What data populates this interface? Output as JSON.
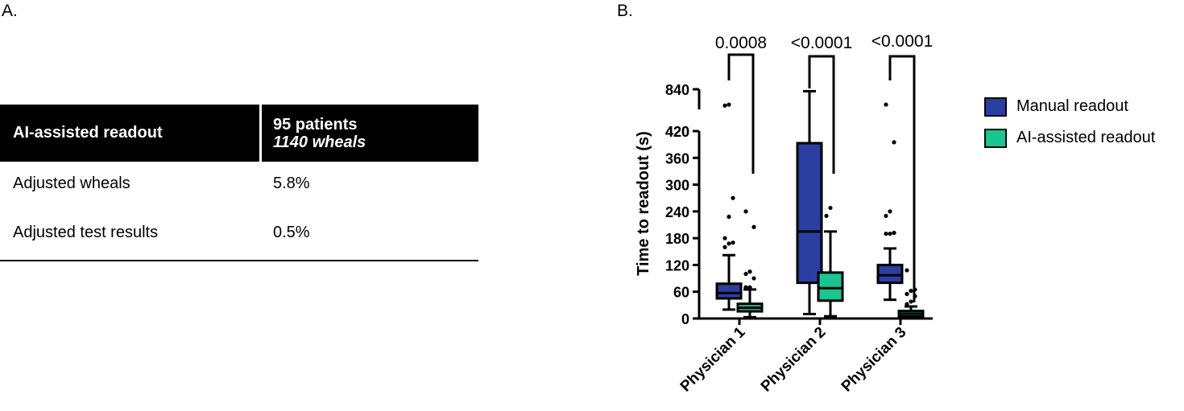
{
  "panel_a": {
    "label": "A.",
    "table": {
      "header": {
        "col1": "AI-assisted readout",
        "col2_line1": "95 patients",
        "col2_line2": "1140 wheals"
      },
      "rows": [
        {
          "label": "Adjusted wheals",
          "value": "5.8%"
        },
        {
          "label": "Adjusted test results",
          "value": "0.5%"
        }
      ]
    }
  },
  "panel_b": {
    "label": "B."
  },
  "chart_data": {
    "type": "box",
    "ylabel": "Time to readout (s)",
    "y_axis_break": {
      "lower_range": [
        0,
        420
      ],
      "upper_range": [
        420,
        840
      ]
    },
    "yticks_lower": [
      0,
      60,
      120,
      180,
      240,
      300,
      360,
      420
    ],
    "yticks_upper": [
      420,
      840
    ],
    "ytick_labels_lower": [
      "0",
      "60",
      "120",
      "180",
      "240",
      "300",
      "360",
      "420"
    ],
    "ytick_labels_upper": [
      "420",
      "840"
    ],
    "categories": [
      "Physician 1",
      "Physician 2",
      "Physician 3"
    ],
    "series": [
      {
        "name": "Manual readout",
        "color": "#2b3ea1",
        "boxes": [
          {
            "min": 20,
            "q1": 45,
            "median": 57,
            "q3": 78,
            "max": 142,
            "outliers": [
              160,
              168,
              170,
              180,
              228,
              270,
              500,
              520
            ]
          },
          {
            "min": 10,
            "q1": 80,
            "median": 195,
            "q3": 393,
            "max": 800,
            "outliers": []
          },
          {
            "min": 42,
            "q1": 80,
            "median": 97,
            "q3": 120,
            "max": 157,
            "outliers": [
              190,
              190,
              192,
              230,
              240,
              395,
              520
            ]
          }
        ]
      },
      {
        "name": "AI-assisted readout",
        "color": "#19c590",
        "boxes": [
          {
            "min": 3,
            "q1": 16,
            "median": 24,
            "q3": 33,
            "max": 65,
            "outliers": [
              70,
              70,
              90,
              100,
              105,
              205,
              240
            ]
          },
          {
            "min": 5,
            "q1": 40,
            "median": 68,
            "q3": 103,
            "max": 195,
            "outliers": [
              230,
              248
            ]
          },
          {
            "min": 0,
            "q1": 5,
            "median": 11,
            "q3": 17,
            "max": 27,
            "outliers": [
              32,
              38,
              50,
              55,
              62,
              65,
              108
            ]
          }
        ]
      }
    ],
    "significance": [
      {
        "category": "Physician 1",
        "p": "0.0008"
      },
      {
        "category": "Physician 2",
        "p": "<0.0001"
      },
      {
        "category": "Physician 3",
        "p": "<0.0001"
      }
    ],
    "legend": {
      "position": "right"
    }
  }
}
